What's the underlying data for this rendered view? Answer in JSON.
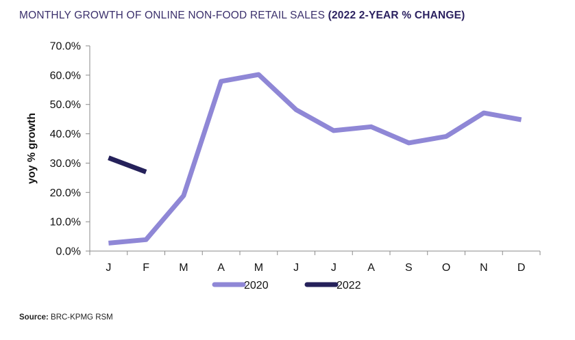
{
  "header": {
    "title_normal": "MONTHLY GROWTH OF ONLINE NON-FOOD RETAIL SALES ",
    "title_bold": "(2022 2-YEAR % CHANGE)"
  },
  "footer": {
    "source_label": "Source:",
    "source_text": " BRC-KPMG RSM"
  },
  "chart_data": {
    "type": "line",
    "ylabel": "yoy % growth",
    "xlabel": "",
    "categories": [
      "J",
      "F",
      "M",
      "A",
      "M",
      "J",
      "J",
      "A",
      "S",
      "O",
      "N",
      "D"
    ],
    "ylim": [
      0,
      70
    ],
    "yticks": [
      0,
      10,
      20,
      30,
      40,
      50,
      60,
      70
    ],
    "ytick_labels": [
      "0.0%",
      "10.0%",
      "20.0%",
      "30.0%",
      "40.0%",
      "50.0%",
      "60.0%",
      "70.0%"
    ],
    "grid": false,
    "legend_position": "bottom",
    "series": [
      {
        "name": "2020",
        "color": "#8f87d6",
        "values": [
          2.7,
          3.9,
          18.9,
          57.9,
          60.2,
          48.2,
          41.1,
          42.4,
          36.9,
          39.1,
          47.1,
          44.8
        ]
      },
      {
        "name": "2022",
        "color": "#25215a",
        "values": [
          31.8,
          27.0,
          null,
          null,
          null,
          null,
          null,
          null,
          null,
          null,
          null,
          null
        ]
      }
    ]
  }
}
